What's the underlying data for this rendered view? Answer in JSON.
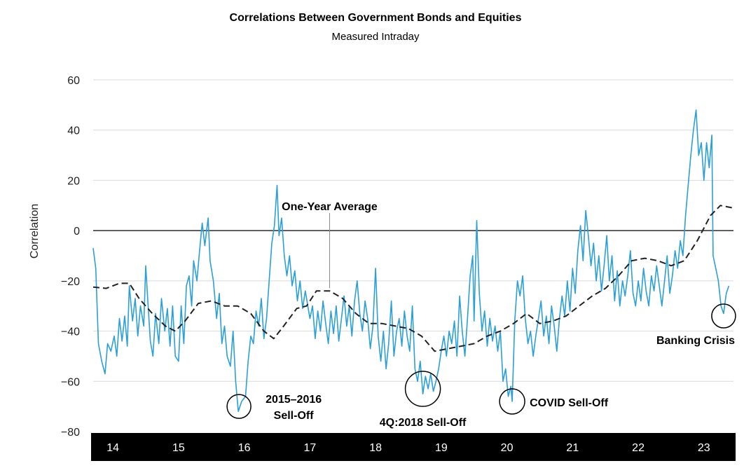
{
  "chart_data": {
    "type": "line",
    "title": "Correlations Between Government Bonds and Equities",
    "subtitle": "Measured Intraday",
    "xlabel": "",
    "ylabel": "Correlation",
    "ylim": [
      -80,
      60
    ],
    "yticks": [
      60,
      40,
      20,
      0,
      -20,
      -40,
      -60,
      -80
    ],
    "xlim": [
      2013.7,
      2023.45
    ],
    "xticks": [
      {
        "x": 2014,
        "label": "14"
      },
      {
        "x": 2015,
        "label": "15"
      },
      {
        "x": 2016,
        "label": "16"
      },
      {
        "x": 2017,
        "label": "17"
      },
      {
        "x": 2018,
        "label": "18"
      },
      {
        "x": 2019,
        "label": "19"
      },
      {
        "x": 2020,
        "label": "20"
      },
      {
        "x": 2021,
        "label": "21"
      },
      {
        "x": 2022,
        "label": "22"
      },
      {
        "x": 2023,
        "label": "23"
      }
    ],
    "grid": true,
    "series": [
      {
        "color": "#2b9fd8",
        "style": "solid",
        "points": [
          [
            2013.7,
            -7
          ],
          [
            2013.74,
            -15
          ],
          [
            2013.78,
            -45
          ],
          [
            2013.83,
            -52
          ],
          [
            2013.88,
            -57
          ],
          [
            2013.92,
            -45
          ],
          [
            2013.97,
            -48
          ],
          [
            2014.02,
            -42
          ],
          [
            2014.06,
            -50
          ],
          [
            2014.1,
            -35
          ],
          [
            2014.14,
            -44
          ],
          [
            2014.18,
            -34
          ],
          [
            2014.22,
            -46
          ],
          [
            2014.25,
            -22
          ],
          [
            2014.3,
            -36
          ],
          [
            2014.34,
            -27
          ],
          [
            2014.38,
            -42
          ],
          [
            2014.42,
            -30
          ],
          [
            2014.47,
            -38
          ],
          [
            2014.5,
            -14
          ],
          [
            2014.53,
            -27
          ],
          [
            2014.57,
            -44
          ],
          [
            2014.61,
            -50
          ],
          [
            2014.65,
            -33
          ],
          [
            2014.7,
            -45
          ],
          [
            2014.74,
            -27
          ],
          [
            2014.79,
            -40
          ],
          [
            2014.83,
            -31
          ],
          [
            2014.87,
            -46
          ],
          [
            2014.91,
            -30
          ],
          [
            2014.95,
            -50
          ],
          [
            2015.0,
            -52
          ],
          [
            2015.04,
            -30
          ],
          [
            2015.08,
            -45
          ],
          [
            2015.12,
            -22
          ],
          [
            2015.16,
            -18
          ],
          [
            2015.2,
            -30
          ],
          [
            2015.23,
            -12
          ],
          [
            2015.28,
            -20
          ],
          [
            2015.32,
            -8
          ],
          [
            2015.36,
            3
          ],
          [
            2015.4,
            -6
          ],
          [
            2015.45,
            5
          ],
          [
            2015.48,
            -12
          ],
          [
            2015.53,
            -20
          ],
          [
            2015.58,
            -35
          ],
          [
            2015.62,
            -25
          ],
          [
            2015.66,
            -45
          ],
          [
            2015.7,
            -38
          ],
          [
            2015.74,
            -50
          ],
          [
            2015.79,
            -54
          ],
          [
            2015.83,
            -40
          ],
          [
            2015.87,
            -60
          ],
          [
            2015.91,
            -72
          ],
          [
            2015.96,
            -68
          ],
          [
            2016.02,
            -66
          ],
          [
            2016.06,
            -52
          ],
          [
            2016.1,
            -42
          ],
          [
            2016.14,
            -45
          ],
          [
            2016.18,
            -32
          ],
          [
            2016.22,
            -38
          ],
          [
            2016.26,
            -27
          ],
          [
            2016.3,
            -43
          ],
          [
            2016.34,
            -35
          ],
          [
            2016.38,
            -20
          ],
          [
            2016.42,
            -5
          ],
          [
            2016.46,
            2
          ],
          [
            2016.5,
            18
          ],
          [
            2016.53,
            -2
          ],
          [
            2016.57,
            5
          ],
          [
            2016.61,
            -10
          ],
          [
            2016.65,
            -18
          ],
          [
            2016.69,
            -10
          ],
          [
            2016.73,
            -22
          ],
          [
            2016.77,
            -16
          ],
          [
            2016.81,
            -28
          ],
          [
            2016.85,
            -20
          ],
          [
            2016.89,
            -31
          ],
          [
            2016.93,
            -24
          ],
          [
            2017.0,
            -35
          ],
          [
            2017.04,
            -30
          ],
          [
            2017.08,
            -43
          ],
          [
            2017.12,
            -32
          ],
          [
            2017.16,
            -40
          ],
          [
            2017.2,
            -28
          ],
          [
            2017.24,
            -37
          ],
          [
            2017.28,
            -45
          ],
          [
            2017.32,
            -32
          ],
          [
            2017.36,
            -41
          ],
          [
            2017.4,
            -30
          ],
          [
            2017.44,
            -44
          ],
          [
            2017.48,
            -35
          ],
          [
            2017.52,
            -26
          ],
          [
            2017.56,
            -38
          ],
          [
            2017.6,
            -30
          ],
          [
            2017.64,
            -42
          ],
          [
            2017.68,
            -28
          ],
          [
            2017.72,
            -20
          ],
          [
            2017.76,
            -33
          ],
          [
            2017.8,
            -40
          ],
          [
            2017.84,
            -28
          ],
          [
            2017.88,
            -35
          ],
          [
            2017.92,
            -47
          ],
          [
            2017.96,
            -38
          ],
          [
            2018.0,
            -15
          ],
          [
            2018.04,
            -42
          ],
          [
            2018.08,
            -52
          ],
          [
            2018.12,
            -40
          ],
          [
            2018.16,
            -55
          ],
          [
            2018.2,
            -45
          ],
          [
            2018.24,
            -28
          ],
          [
            2018.28,
            -50
          ],
          [
            2018.32,
            -40
          ],
          [
            2018.36,
            -35
          ],
          [
            2018.4,
            -46
          ],
          [
            2018.44,
            -32
          ],
          [
            2018.48,
            -42
          ],
          [
            2018.52,
            -48
          ],
          [
            2018.56,
            -30
          ],
          [
            2018.6,
            -55
          ],
          [
            2018.64,
            -60
          ],
          [
            2018.68,
            -52
          ],
          [
            2018.72,
            -65
          ],
          [
            2018.76,
            -58
          ],
          [
            2018.8,
            -63
          ],
          [
            2018.84,
            -57
          ],
          [
            2018.88,
            -64
          ],
          [
            2018.92,
            -60
          ],
          [
            2018.96,
            -55
          ],
          [
            2019.0,
            -48
          ],
          [
            2019.04,
            -42
          ],
          [
            2019.08,
            -50
          ],
          [
            2019.12,
            -40
          ],
          [
            2019.16,
            -45
          ],
          [
            2019.2,
            -36
          ],
          [
            2019.24,
            -50
          ],
          [
            2019.28,
            -26
          ],
          [
            2019.32,
            -40
          ],
          [
            2019.36,
            -50
          ],
          [
            2019.4,
            -35
          ],
          [
            2019.44,
            -18
          ],
          [
            2019.48,
            -10
          ],
          [
            2019.5,
            -36
          ],
          [
            2019.54,
            4
          ],
          [
            2019.58,
            -25
          ],
          [
            2019.62,
            -40
          ],
          [
            2019.66,
            -32
          ],
          [
            2019.7,
            -46
          ],
          [
            2019.74,
            -35
          ],
          [
            2019.78,
            -44
          ],
          [
            2019.82,
            -38
          ],
          [
            2019.86,
            -48
          ],
          [
            2019.9,
            -40
          ],
          [
            2019.94,
            -60
          ],
          [
            2019.98,
            -55
          ],
          [
            2020.02,
            -66
          ],
          [
            2020.06,
            -62
          ],
          [
            2020.08,
            -68
          ],
          [
            2020.12,
            -36
          ],
          [
            2020.16,
            -20
          ],
          [
            2020.2,
            -26
          ],
          [
            2020.24,
            -18
          ],
          [
            2020.28,
            -35
          ],
          [
            2020.32,
            -45
          ],
          [
            2020.36,
            -40
          ],
          [
            2020.4,
            -50
          ],
          [
            2020.44,
            -42
          ],
          [
            2020.48,
            -35
          ],
          [
            2020.52,
            -28
          ],
          [
            2020.56,
            -42
          ],
          [
            2020.6,
            -34
          ],
          [
            2020.64,
            -45
          ],
          [
            2020.68,
            -30
          ],
          [
            2020.72,
            -38
          ],
          [
            2020.76,
            -48
          ],
          [
            2020.8,
            -35
          ],
          [
            2020.84,
            -26
          ],
          [
            2020.88,
            -34
          ],
          [
            2020.92,
            -20
          ],
          [
            2020.96,
            -32
          ],
          [
            2021.0,
            -15
          ],
          [
            2021.04,
            -25
          ],
          [
            2021.08,
            -8
          ],
          [
            2021.12,
            2
          ],
          [
            2021.16,
            -12
          ],
          [
            2021.2,
            8
          ],
          [
            2021.24,
            -2
          ],
          [
            2021.28,
            -14
          ],
          [
            2021.32,
            -5
          ],
          [
            2021.36,
            -20
          ],
          [
            2021.4,
            -10
          ],
          [
            2021.44,
            -24
          ],
          [
            2021.48,
            -14
          ],
          [
            2021.52,
            -2
          ],
          [
            2021.56,
            -20
          ],
          [
            2021.6,
            -10
          ],
          [
            2021.64,
            -28
          ],
          [
            2021.68,
            -16
          ],
          [
            2021.72,
            -30
          ],
          [
            2021.76,
            -20
          ],
          [
            2021.8,
            -26
          ],
          [
            2021.84,
            -18
          ],
          [
            2021.88,
            -8
          ],
          [
            2021.92,
            -25
          ],
          [
            2021.96,
            -30
          ],
          [
            2022.0,
            -20
          ],
          [
            2022.04,
            -28
          ],
          [
            2022.08,
            -15
          ],
          [
            2022.12,
            -24
          ],
          [
            2022.16,
            -30
          ],
          [
            2022.2,
            -18
          ],
          [
            2022.24,
            -24
          ],
          [
            2022.28,
            -14
          ],
          [
            2022.32,
            -22
          ],
          [
            2022.36,
            -30
          ],
          [
            2022.4,
            -20
          ],
          [
            2022.44,
            -10
          ],
          [
            2022.48,
            -25
          ],
          [
            2022.52,
            -18
          ],
          [
            2022.56,
            -8
          ],
          [
            2022.6,
            -15
          ],
          [
            2022.64,
            -4
          ],
          [
            2022.68,
            -10
          ],
          [
            2022.72,
            6
          ],
          [
            2022.76,
            18
          ],
          [
            2022.8,
            30
          ],
          [
            2022.84,
            40
          ],
          [
            2022.88,
            48
          ],
          [
            2022.92,
            30
          ],
          [
            2022.96,
            35
          ],
          [
            2023.0,
            20
          ],
          [
            2023.04,
            35
          ],
          [
            2023.08,
            25
          ],
          [
            2023.12,
            38
          ],
          [
            2023.14,
            -10
          ],
          [
            2023.18,
            -15
          ],
          [
            2023.22,
            -20
          ],
          [
            2023.26,
            -30
          ],
          [
            2023.3,
            -33
          ],
          [
            2023.34,
            -25
          ],
          [
            2023.38,
            -22
          ]
        ]
      },
      {
        "name": "One-Year Average",
        "color": "#222222",
        "style": "dashed",
        "points": [
          [
            2013.7,
            -22.5
          ],
          [
            2013.9,
            -23
          ],
          [
            2014.1,
            -21
          ],
          [
            2014.25,
            -21
          ],
          [
            2014.4,
            -27
          ],
          [
            2014.6,
            -33
          ],
          [
            2014.8,
            -38
          ],
          [
            2014.95,
            -40
          ],
          [
            2015.1,
            -36
          ],
          [
            2015.3,
            -29
          ],
          [
            2015.5,
            -28
          ],
          [
            2015.7,
            -30
          ],
          [
            2015.9,
            -30
          ],
          [
            2016.1,
            -33
          ],
          [
            2016.3,
            -40
          ],
          [
            2016.45,
            -43
          ],
          [
            2016.6,
            -38
          ],
          [
            2016.8,
            -31
          ],
          [
            2016.95,
            -30
          ],
          [
            2017.1,
            -24
          ],
          [
            2017.3,
            -24
          ],
          [
            2017.5,
            -27
          ],
          [
            2017.7,
            -33
          ],
          [
            2017.9,
            -37
          ],
          [
            2018.1,
            -37
          ],
          [
            2018.3,
            -38
          ],
          [
            2018.5,
            -39
          ],
          [
            2018.7,
            -42
          ],
          [
            2018.9,
            -48
          ],
          [
            2019.1,
            -47
          ],
          [
            2019.3,
            -46
          ],
          [
            2019.5,
            -45
          ],
          [
            2019.7,
            -42
          ],
          [
            2019.9,
            -40
          ],
          [
            2020.1,
            -37
          ],
          [
            2020.3,
            -33
          ],
          [
            2020.5,
            -37
          ],
          [
            2020.7,
            -36
          ],
          [
            2020.9,
            -34
          ],
          [
            2021.1,
            -30
          ],
          [
            2021.3,
            -26
          ],
          [
            2021.5,
            -23
          ],
          [
            2021.7,
            -18
          ],
          [
            2021.9,
            -12
          ],
          [
            2022.1,
            -11
          ],
          [
            2022.3,
            -12
          ],
          [
            2022.5,
            -14
          ],
          [
            2022.7,
            -12
          ],
          [
            2022.9,
            -4
          ],
          [
            2023.1,
            6
          ],
          [
            2023.25,
            10
          ],
          [
            2023.45,
            9
          ]
        ]
      }
    ],
    "annotations": [
      {
        "label": "One-Year Average",
        "x": 2017.3,
        "y": -24
      },
      {
        "label": "2015–2016",
        "label2": "Sell-Off",
        "x": 2015.92,
        "y": -70
      },
      {
        "label": "4Q:2018 Sell-Off",
        "x": 2018.72,
        "y": -63
      },
      {
        "label": "COVID Sell-Off",
        "x": 2020.08,
        "y": -68
      },
      {
        "label": "Banking Crisis",
        "x": 2023.3,
        "y": -34
      }
    ]
  }
}
